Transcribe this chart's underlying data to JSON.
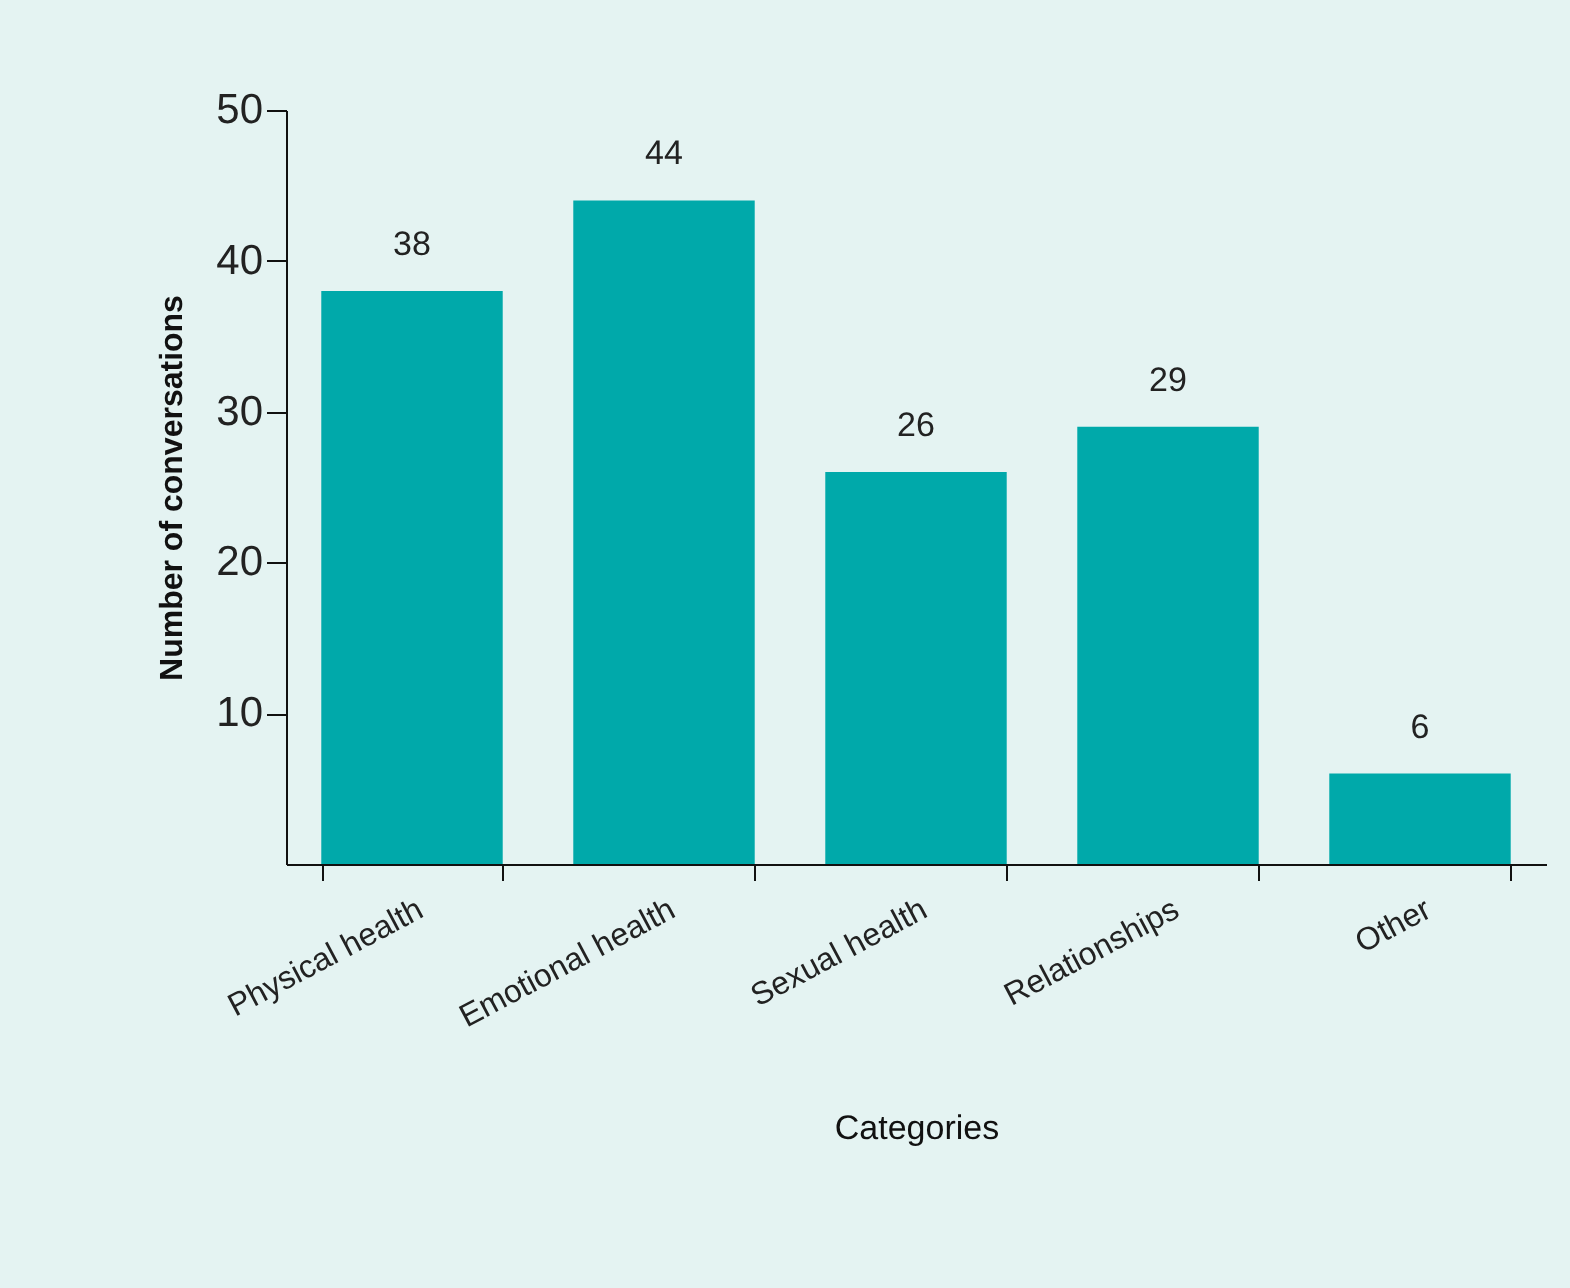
{
  "chart_data": {
    "type": "bar",
    "xlabel": "Categories",
    "ylabel": "Number of conversations",
    "categories": [
      "Physical health",
      "Emotional health",
      "Sexual health",
      "Relationships",
      "Other"
    ],
    "values": [
      38,
      44,
      26,
      29,
      6
    ],
    "color": "#00a9aa",
    "ylim": [
      0,
      50
    ],
    "yticks": [
      10,
      20,
      30,
      40,
      50
    ],
    "grid": false,
    "data_labels": true
  }
}
